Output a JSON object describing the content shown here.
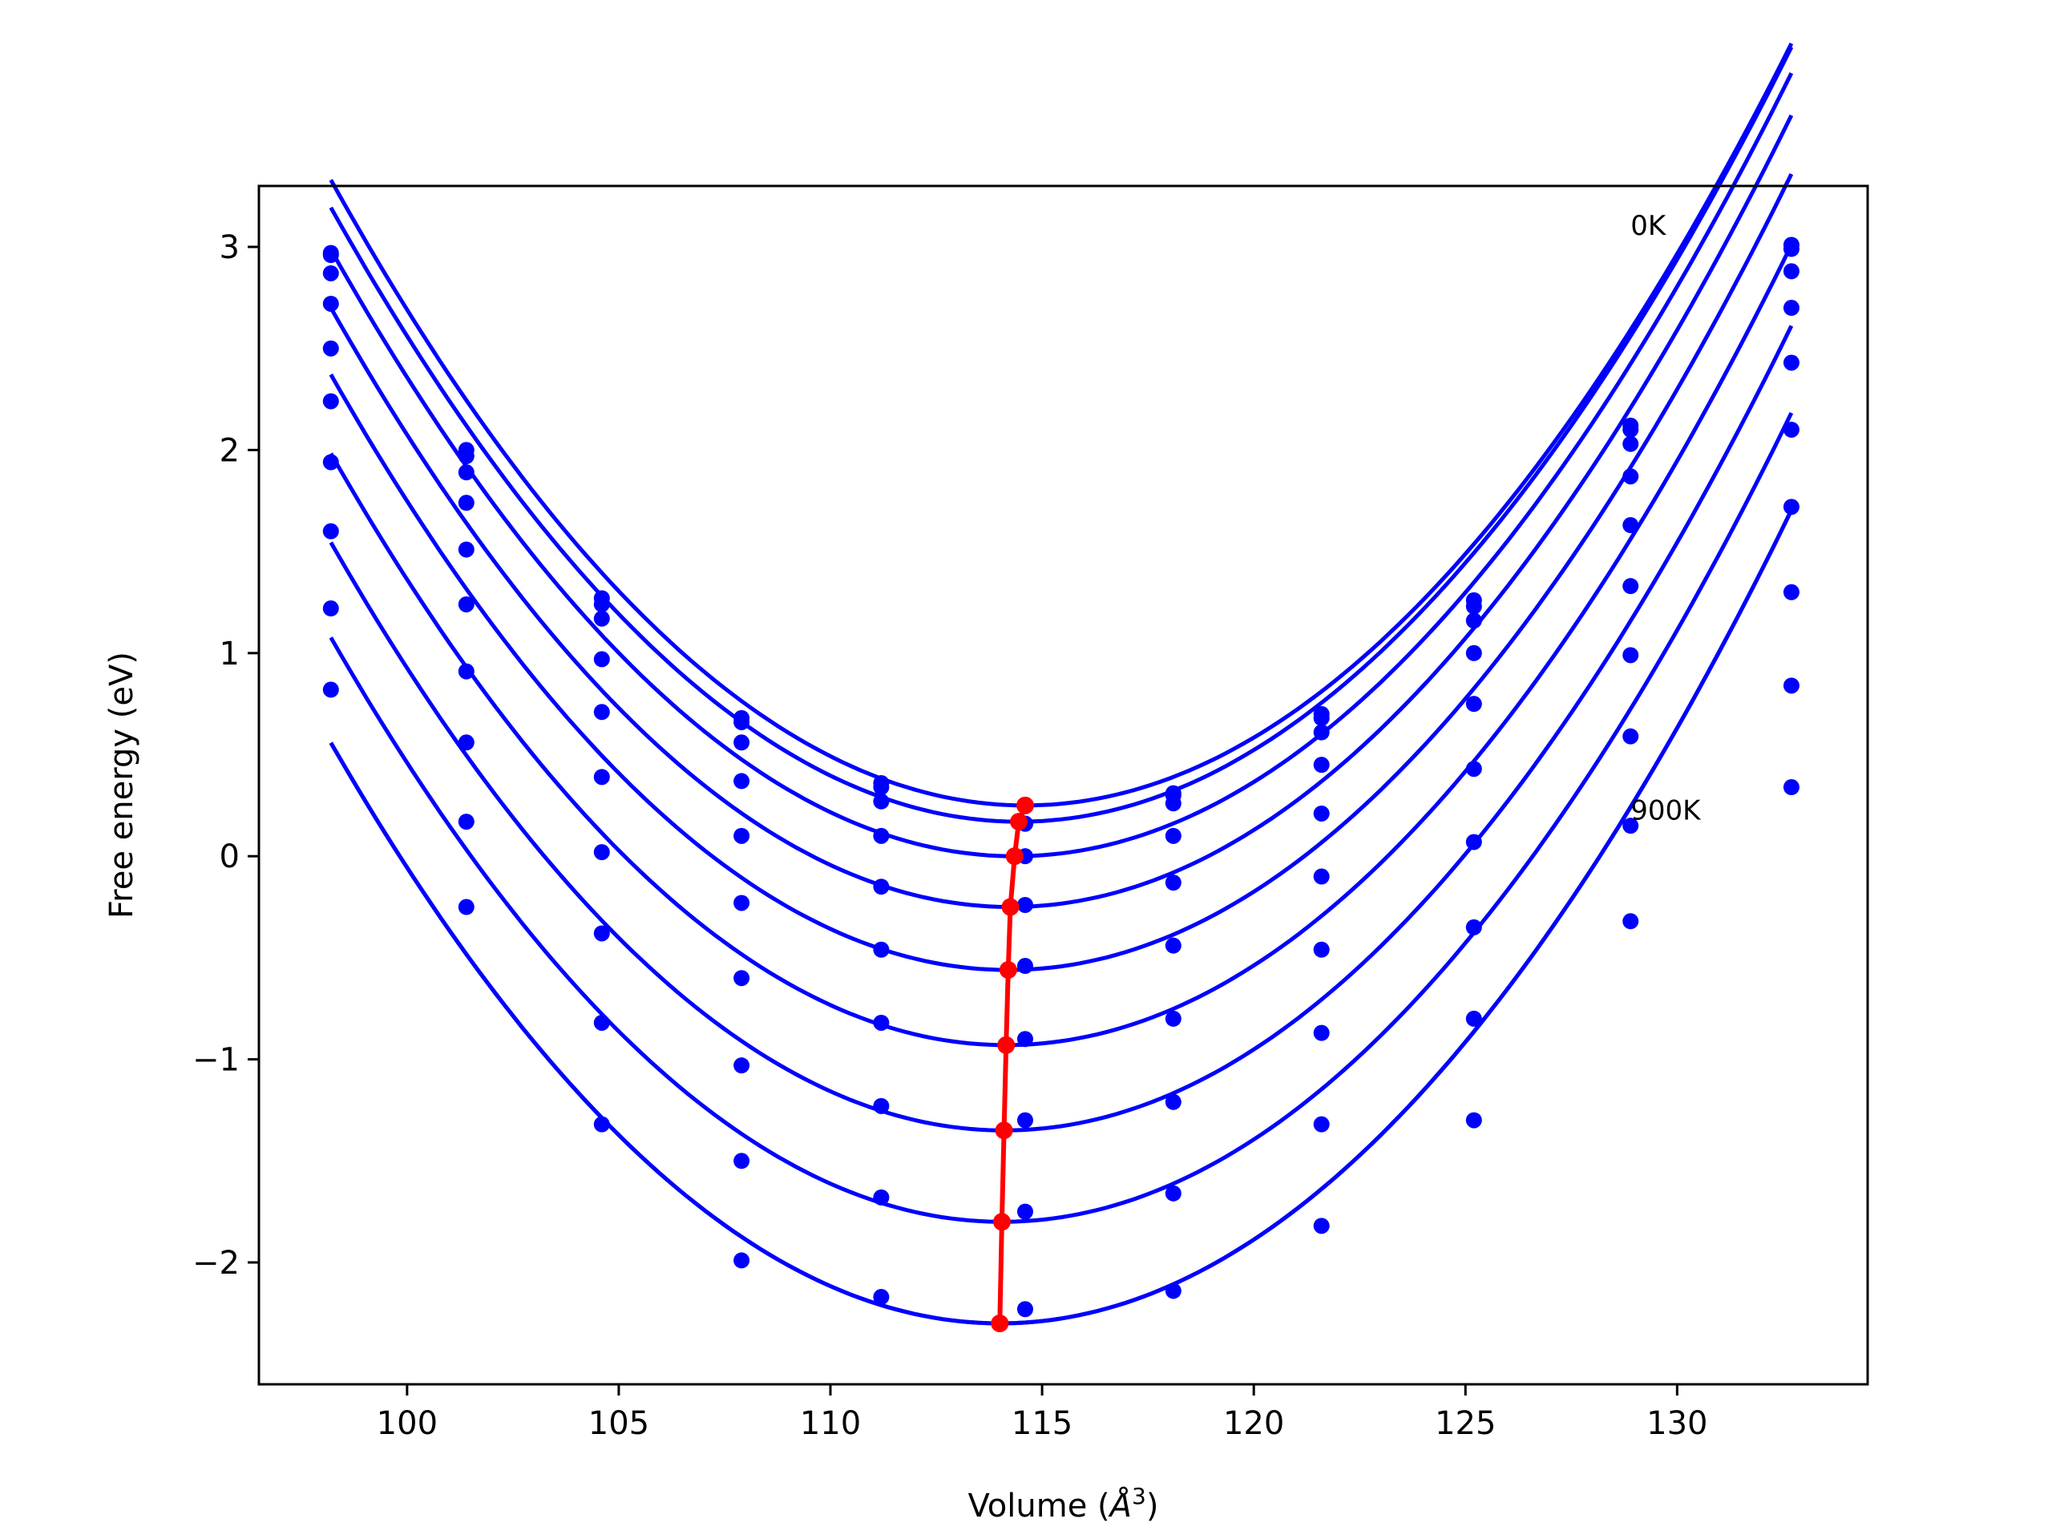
{
  "chart_data": {
    "type": "line",
    "title": "",
    "xlabel": "Volume (Å³)",
    "xlabel_main": "Volume (",
    "xlabel_unit": "Å",
    "xlabel_sup": "3",
    "xlabel_close": ")",
    "ylabel": "Free energy (eV)",
    "xlim": [
      96.5,
      134.5
    ],
    "ylim": [
      -2.6,
      3.3
    ],
    "xticks": [
      100,
      105,
      110,
      115,
      120,
      125,
      130
    ],
    "xtick_labels": [
      "100",
      "105",
      "110",
      "115",
      "120",
      "125",
      "130"
    ],
    "yticks": [
      -2,
      -1,
      0,
      1,
      2,
      3
    ],
    "ytick_labels": [
      "−2",
      "−1",
      "0",
      "1",
      "2",
      "3"
    ],
    "grid": false,
    "legend": "none",
    "colors": {
      "fit": "#0000ff",
      "points": "#0000ff",
      "minima": "#ff0000"
    },
    "annotations": [
      {
        "text": "0K",
        "x": 128.9,
        "y": 3.06
      },
      {
        "text": "900K",
        "x": 128.9,
        "y": 0.18
      }
    ],
    "volumes": [
      98.2,
      101.4,
      104.6,
      107.9,
      111.2,
      114.6,
      118.1,
      121.6,
      125.2,
      128.9,
      132.7
    ],
    "curves": [
      {
        "vmin": 114.6,
        "emin": 0.25,
        "a": 0.01145,
        "points": [
          2.97,
          2.0,
          1.27,
          0.68,
          0.36,
          0.25,
          0.31,
          0.7,
          1.26,
          2.12,
          3.01
        ]
      },
      {
        "vmin": 114.45,
        "emin": 0.17,
        "a": 0.01145,
        "points": [
          2.96,
          1.97,
          1.24,
          0.66,
          0.34,
          0.16,
          0.3,
          0.68,
          1.23,
          2.1,
          2.99
        ]
      },
      {
        "vmin": 114.35,
        "emin": 0.0,
        "a": 0.01145,
        "points": [
          2.87,
          1.89,
          1.17,
          0.56,
          0.27,
          0.16,
          0.26,
          0.61,
          1.16,
          2.03,
          2.88
        ]
      },
      {
        "vmin": 114.25,
        "emin": -0.25,
        "a": 0.01145,
        "points": [
          2.72,
          1.74,
          0.97,
          0.37,
          0.1,
          0.0,
          0.1,
          0.45,
          1.0,
          1.87,
          2.7
        ]
      },
      {
        "vmin": 114.2,
        "emin": -0.56,
        "a": 0.01145,
        "points": [
          2.5,
          1.51,
          0.71,
          0.1,
          -0.15,
          -0.24,
          -0.13,
          0.21,
          0.75,
          1.63,
          2.43
        ]
      },
      {
        "vmin": 114.15,
        "emin": -0.93,
        "a": 0.01145,
        "points": [
          2.24,
          1.24,
          0.39,
          -0.23,
          -0.46,
          -0.54,
          -0.44,
          -0.1,
          0.43,
          1.33,
          2.1
        ]
      },
      {
        "vmin": 114.1,
        "emin": -1.35,
        "a": 0.01145,
        "points": [
          1.94,
          0.91,
          0.02,
          -0.6,
          -0.82,
          -0.9,
          -0.8,
          -0.46,
          0.07,
          0.99,
          1.72
        ]
      },
      {
        "vmin": 114.05,
        "emin": -1.8,
        "a": 0.01145,
        "points": [
          1.6,
          0.56,
          -0.38,
          -1.03,
          -1.23,
          -1.3,
          -1.21,
          -0.87,
          -0.35,
          0.59,
          1.3
        ]
      },
      {
        "vmin": 114.0,
        "emin": -2.3,
        "a": 0.01145,
        "points": [
          1.22,
          0.17,
          -0.82,
          -1.5,
          -1.68,
          -1.75,
          -1.66,
          -1.32,
          -0.8,
          0.15,
          0.84
        ]
      },
      {
        "vmin": 114.0,
        "emin": -2.3,
        "a": 0.01145,
        "points": [
          0.82,
          -0.25,
          -1.32,
          -1.99,
          -2.17,
          -2.23,
          -2.14,
          -1.82,
          -1.3,
          -0.32,
          0.34
        ]
      }
    ],
    "minima_line": {
      "x": [
        114.6,
        114.45,
        114.35,
        114.25,
        114.2,
        114.15,
        114.1,
        114.05,
        114.0,
        114.0
      ],
      "y": [
        0.25,
        0.17,
        0.0,
        -0.25,
        -0.56,
        -0.93,
        -1.35,
        -1.8,
        -2.3,
        -2.3
      ]
    }
  }
}
